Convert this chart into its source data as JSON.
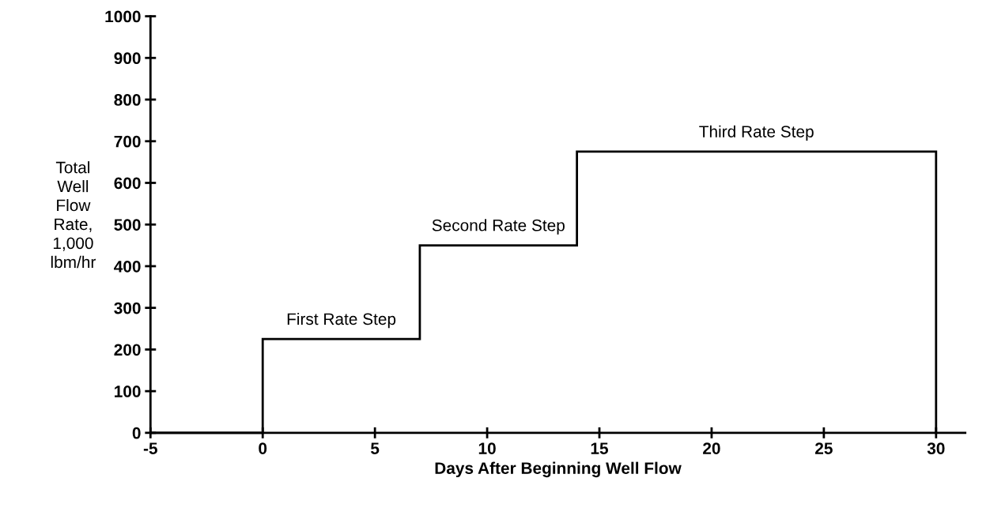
{
  "chart_data": {
    "type": "step",
    "xlabel": "Days After Beginning Well Flow",
    "ylabel": "Total\nWell\nFlow\nRate,\n1,000\nlbm/hr",
    "x": [
      -5,
      0,
      7,
      14,
      30
    ],
    "series": [
      {
        "color": "#000000",
        "values": [
          0,
          225,
          450,
          675,
          0
        ]
      }
    ],
    "xlim": [
      -5,
      31.3
    ],
    "xticks": [
      -5,
      0,
      5,
      10,
      15,
      20,
      25,
      30
    ],
    "ylim": [
      0,
      1000
    ],
    "yticks": [
      0,
      100,
      200,
      300,
      400,
      500,
      600,
      700,
      800,
      900,
      1000
    ],
    "grid": false,
    "legend": false,
    "marker": "none",
    "line_style": "solid",
    "annotations": [
      {
        "text": "First Rate Step",
        "x": 3.5,
        "y": 225
      },
      {
        "text": "Second Rate Step",
        "x": 10.5,
        "y": 450
      },
      {
        "text": "Third Rate Step",
        "x": 22,
        "y": 675
      }
    ]
  }
}
